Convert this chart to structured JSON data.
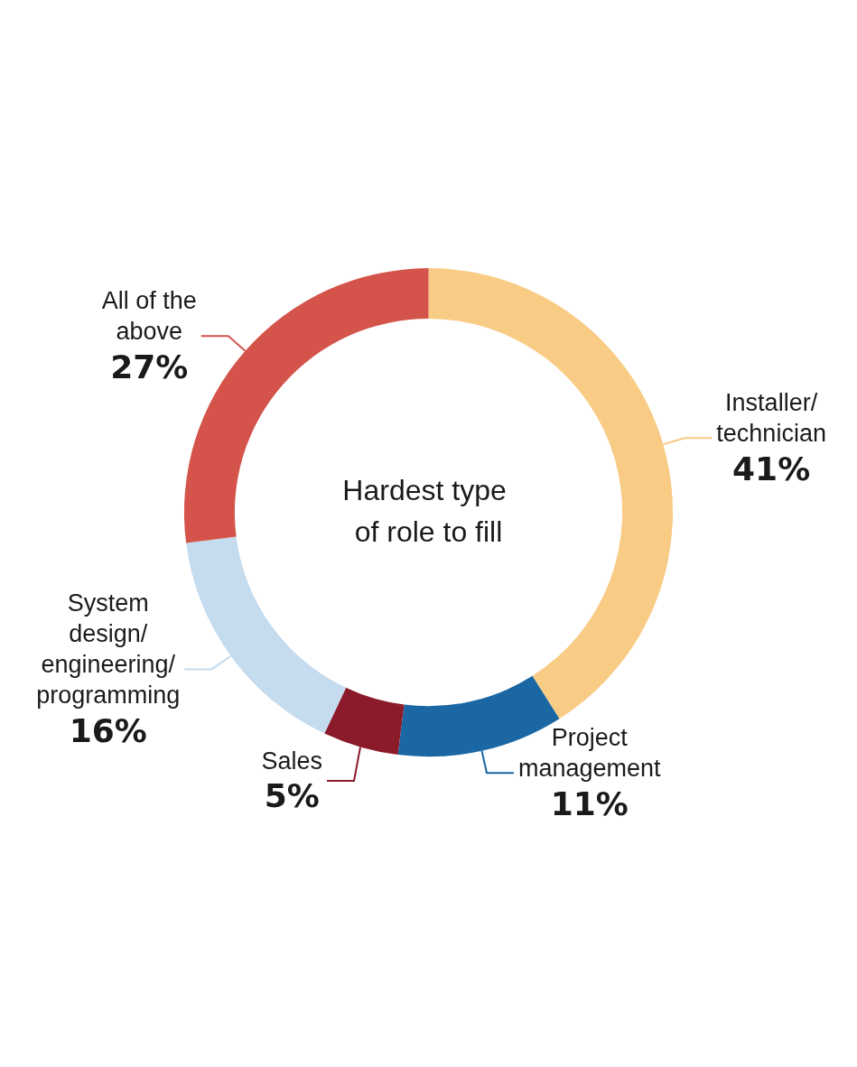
{
  "chart_data": {
    "type": "donut",
    "title": "Hardest type of role to fill",
    "categories": [
      "Installer/technician",
      "Project management",
      "Sales",
      "System design/engineering/programming",
      "All of the above"
    ],
    "values": [
      41,
      11,
      5,
      16,
      27
    ],
    "value_labels": [
      "41%",
      "11%",
      "5%",
      "16%",
      "27%"
    ],
    "colors": [
      "#f9cc85",
      "#1a67a3",
      "#8b1a2a",
      "#c5dbee",
      "#d4534a"
    ],
    "legend": false
  }
}
